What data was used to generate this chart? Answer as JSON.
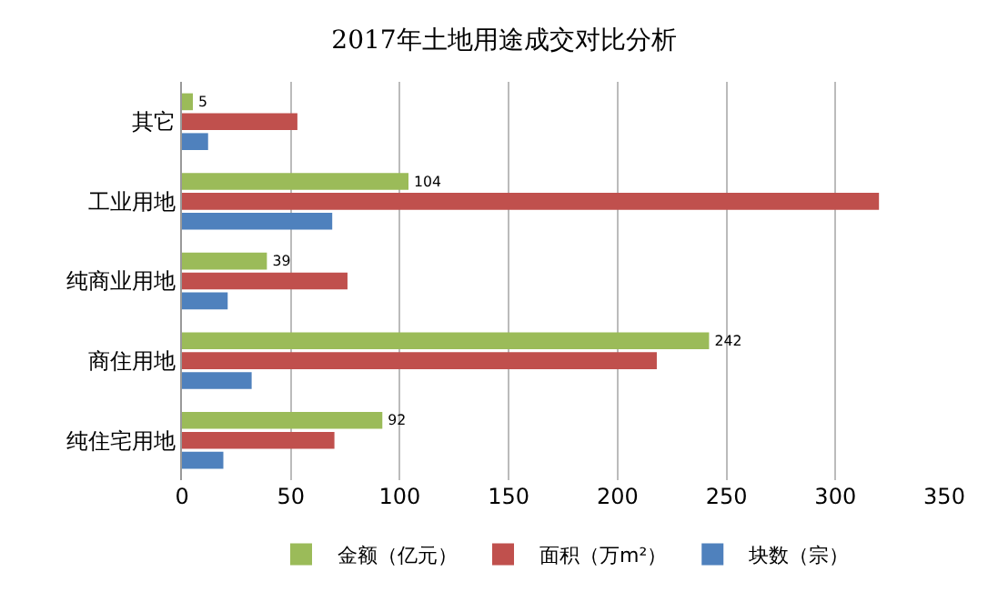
{
  "chart_data": {
    "type": "bar",
    "orientation": "horizontal",
    "title": "2017年土地用途成交对比分析",
    "categories": [
      "其它",
      "工业用地",
      "纯商业用地",
      "商住用地",
      "纯住宅用地"
    ],
    "series": [
      {
        "name": "金额（亿元）",
        "color": "#9bbb59",
        "values": [
          5,
          104,
          39,
          242,
          92
        ],
        "value_labels": [
          "5",
          "104",
          "39",
          "242",
          "92"
        ]
      },
      {
        "name": "面积（万m²）",
        "color": "#c0504d",
        "values": [
          53,
          320,
          76,
          218,
          70
        ]
      },
      {
        "name": "块数（宗）",
        "color": "#4f81bd",
        "values": [
          12,
          69,
          21,
          32,
          19
        ]
      }
    ],
    "xlim": [
      0,
      350
    ],
    "xticks": [
      0,
      50,
      100,
      150,
      200,
      250,
      300,
      350
    ],
    "grid": "x",
    "legend": "bottom"
  }
}
